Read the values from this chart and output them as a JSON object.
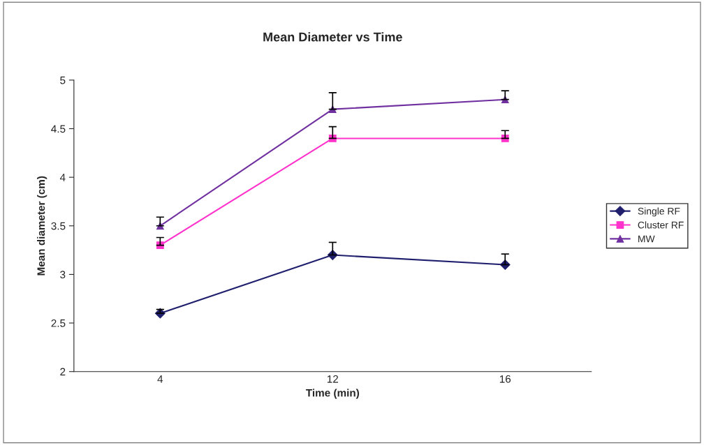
{
  "chart_data": {
    "type": "line",
    "title": "Mean Diameter vs Time",
    "xlabel": "Time (min)",
    "ylabel": "Mean diameter (cm)",
    "categories": [
      "4",
      "12",
      "16"
    ],
    "series": [
      {
        "name": "Single RF",
        "color": "#1f1f6e",
        "marker": "diamond",
        "values": [
          2.6,
          3.2,
          3.1
        ],
        "errors": [
          [
            2.6,
            2.64
          ],
          [
            3.2,
            3.33
          ],
          [
            3.1,
            3.21
          ]
        ]
      },
      {
        "name": "Cluster RF",
        "color": "#ff33cc",
        "marker": "square",
        "values": [
          3.3,
          4.4,
          4.4
        ],
        "errors": [
          [
            3.3,
            3.38
          ],
          [
            4.4,
            4.52
          ],
          [
            4.4,
            4.48
          ]
        ]
      },
      {
        "name": "MW",
        "color": "#7030a0",
        "marker": "triangle",
        "values": [
          3.5,
          4.7,
          4.8
        ],
        "errors": [
          [
            3.5,
            3.59
          ],
          [
            4.7,
            4.87
          ],
          [
            4.8,
            4.89
          ]
        ]
      }
    ],
    "ylim": [
      2,
      5
    ],
    "yticks": [
      2,
      2.5,
      3,
      3.5,
      4,
      4.5,
      5
    ],
    "grid": false,
    "legend": "right"
  }
}
